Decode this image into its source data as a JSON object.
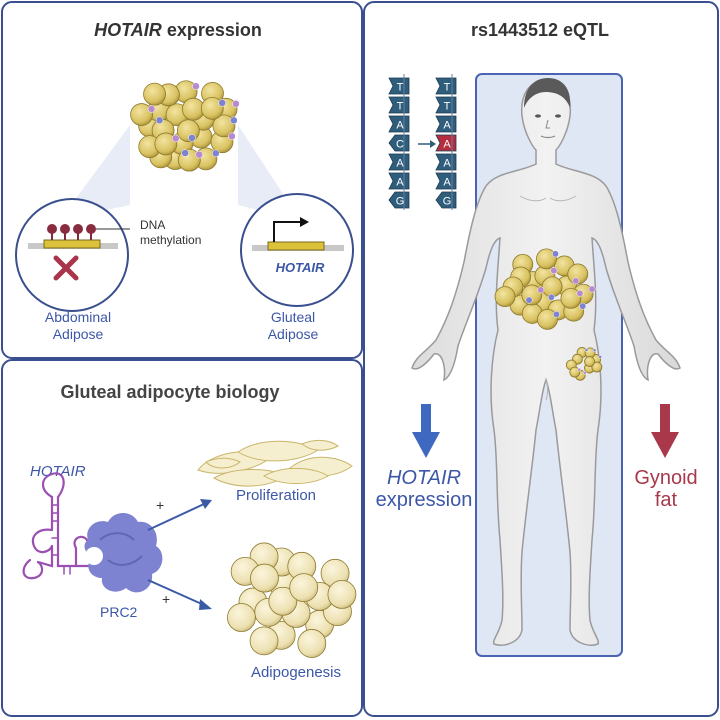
{
  "panel_expression": {
    "title_gene": "HOTAIR",
    "title_rest": " expression",
    "methylation_label_line1": "DNA",
    "methylation_label_line2": "methylation",
    "gene_label": "HOTAIR",
    "abdominal_line1": "Abdominal",
    "abdominal_line2": "Adipose",
    "gluteal_line1": "Gluteal",
    "gluteal_line2": "Adipose"
  },
  "panel_biology": {
    "title": "Gluteal adipocyte biology",
    "gene_label": "HOTAIR",
    "complex_label": "PRC2",
    "plus_1": "+",
    "plus_2": "+",
    "proliferation_label": "Proliferation",
    "adipogenesis_label": "Adipogenesis"
  },
  "panel_eqtl": {
    "title": "rs1443512 eQTL",
    "sequence_left": [
      "T",
      "T",
      "A",
      "C",
      "A",
      "A",
      "G"
    ],
    "sequence_right": [
      "T",
      "T",
      "A",
      "A",
      "A",
      "A",
      "G"
    ],
    "variant_index": 3,
    "effect_1_line1": "HOTAIR",
    "effect_1_line2": "expression",
    "effect_2_line1": "Gynoid",
    "effect_2_line2": "fat"
  },
  "colors": {
    "panel_border": "#3a4f8f",
    "label_blue": "#3d57a8",
    "arrow_blue": "#3f68c0",
    "arrow_red": "#a8384a",
    "dna_box": "#2f5d7c",
    "variant_box": "#b52d3f",
    "adipocyte": "#d8c261",
    "rna_purple": "#9b4fb3",
    "prc2": "#7d83d1"
  },
  "icons": [
    "adipocyte-cluster-icon",
    "cross-mark-icon",
    "transcription-arrow-icon",
    "rna-hairpin-icon",
    "prc2-complex-icon",
    "human-body-icon"
  ]
}
